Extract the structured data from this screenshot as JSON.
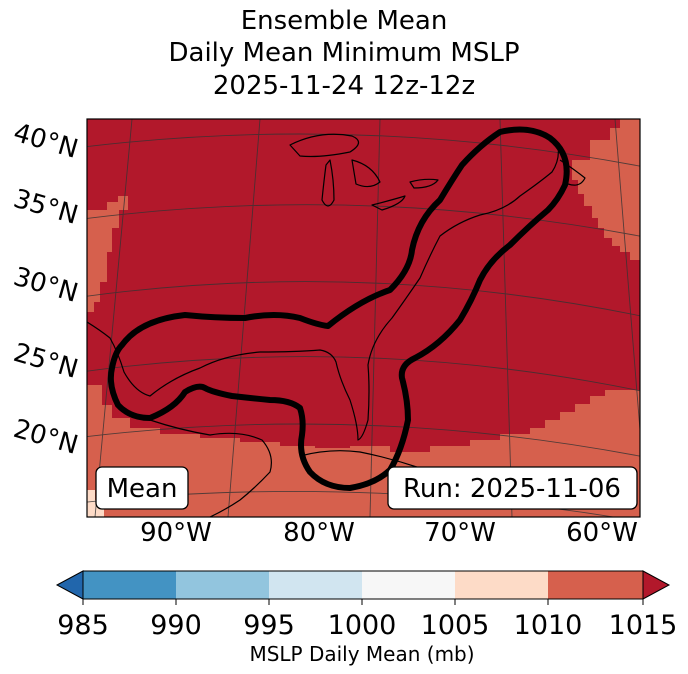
{
  "title": {
    "line1": "Ensemble Mean",
    "line2": "Daily Mean Minimum MSLP",
    "line3": "2025-11-24 12z-12z"
  },
  "map": {
    "lat_labels": [
      "40°N",
      "35°N",
      "30°N",
      "25°N",
      "20°N"
    ],
    "lon_labels": [
      "90°W",
      "80°W",
      "70°W",
      "60°W"
    ],
    "mean_label": "Mean",
    "run_label": "Run: 2025-11-06",
    "colors": {
      "over_1015": "#b2182b",
      "1010_1015": "#d6604d",
      "1005_1010": "#fddbc7",
      "coast": "#000000",
      "contour": "#000000",
      "grid": "#333333"
    }
  },
  "colorbar": {
    "label": "MSLP Daily Mean (mb)",
    "ticks": [
      "985",
      "990",
      "995",
      "1000",
      "1005",
      "1010",
      "1015"
    ],
    "bins": [
      {
        "range": "<985",
        "color": "#2166ac"
      },
      {
        "range": "985-990",
        "color": "#4393c3"
      },
      {
        "range": "990-995",
        "color": "#92c5de"
      },
      {
        "range": "995-1000",
        "color": "#d1e5f0"
      },
      {
        "range": "1000-1005",
        "color": "#f7f7f7"
      },
      {
        "range": "1005-1010",
        "color": "#fddbc7"
      },
      {
        "range": "1010-1015",
        "color": "#d6604d"
      },
      {
        "range": ">1015",
        "color": "#b2182b"
      }
    ]
  }
}
